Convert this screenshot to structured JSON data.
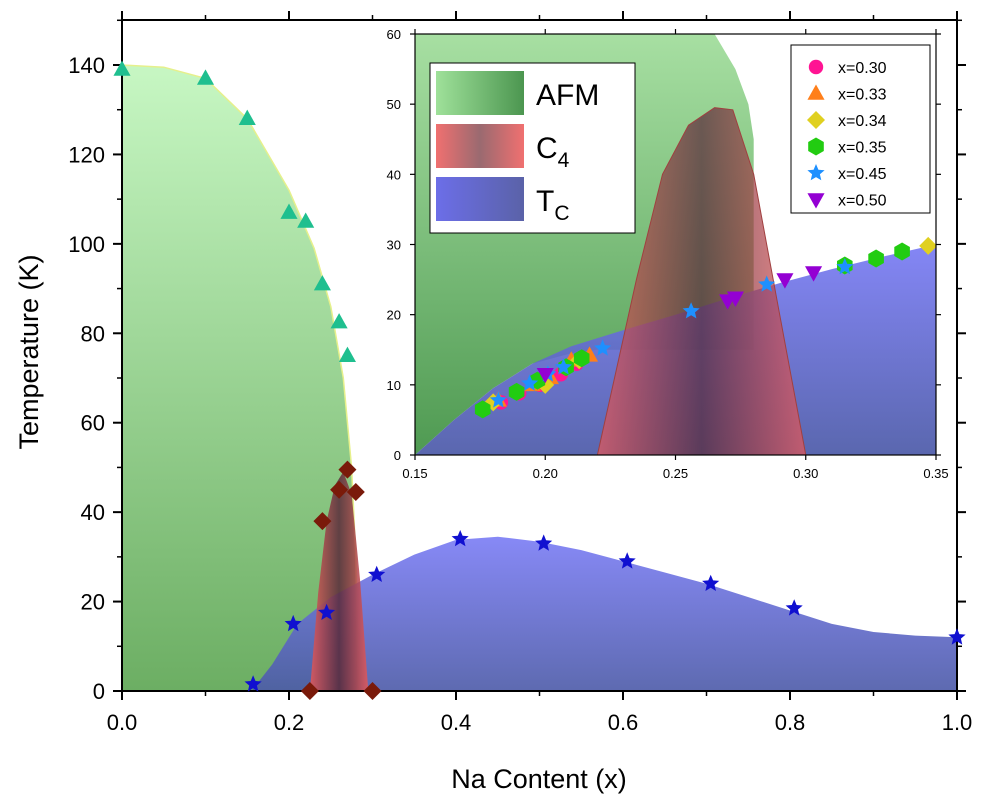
{
  "colors": {
    "afm": "#8fdc8f",
    "c4": "#d93a3a",
    "tc": "#5b5fe0",
    "triangle_marker": "#1fbf8f",
    "diamond_marker": "#7a1a0a",
    "star_marker": "#1010d0"
  },
  "chart_data": [
    {
      "type": "scatter",
      "ylabel": "Temperature (K)",
      "xlabel": "Na Content (x)",
      "xlim": [
        0,
        1
      ],
      "ylim": [
        0,
        150
      ],
      "x_ticks": [
        "0.0",
        "0.2",
        "0.4",
        "0.6",
        "0.8",
        "1.0"
      ],
      "y_ticks": [
        "0",
        "20",
        "40",
        "60",
        "80",
        "100",
        "120",
        "140"
      ],
      "regions": {
        "afm_boundary": [
          [
            0,
            140
          ],
          [
            0.05,
            139.5
          ],
          [
            0.1,
            137
          ],
          [
            0.15,
            128
          ],
          [
            0.2,
            112
          ],
          [
            0.23,
            99
          ],
          [
            0.25,
            86
          ],
          [
            0.265,
            70
          ],
          [
            0.275,
            50
          ],
          [
            0.28,
            30
          ],
          [
            0.283,
            0
          ]
        ],
        "c4_dome": [
          [
            0.225,
            0
          ],
          [
            0.235,
            22
          ],
          [
            0.245,
            38
          ],
          [
            0.255,
            46
          ],
          [
            0.265,
            49
          ],
          [
            0.275,
            44
          ],
          [
            0.285,
            25
          ],
          [
            0.295,
            0
          ]
        ],
        "tc_dome": [
          [
            0.155,
            0
          ],
          [
            0.18,
            6
          ],
          [
            0.21,
            15
          ],
          [
            0.25,
            21
          ],
          [
            0.3,
            26
          ],
          [
            0.35,
            30.5
          ],
          [
            0.4,
            33.8
          ],
          [
            0.45,
            34.5
          ],
          [
            0.5,
            33.4
          ],
          [
            0.55,
            31.5
          ],
          [
            0.6,
            29
          ],
          [
            0.65,
            26.5
          ],
          [
            0.7,
            24
          ],
          [
            0.75,
            21
          ],
          [
            0.8,
            18
          ],
          [
            0.85,
            15
          ],
          [
            0.9,
            13.2
          ],
          [
            0.95,
            12.4
          ],
          [
            1.0,
            12
          ]
        ]
      },
      "series": [
        {
          "marker": "triangle",
          "points": [
            [
              0,
              139
            ],
            [
              0.1,
              137
            ],
            [
              0.15,
              128
            ],
            [
              0.2,
              107
            ],
            [
              0.22,
              105
            ],
            [
              0.24,
              91
            ],
            [
              0.26,
              82.5
            ],
            [
              0.27,
              75
            ]
          ]
        },
        {
          "marker": "diamond",
          "points": [
            [
              0.225,
              0
            ],
            [
              0.24,
              38
            ],
            [
              0.26,
              45
            ],
            [
              0.27,
              49.5
            ],
            [
              0.28,
              44.5
            ],
            [
              0.3,
              0
            ]
          ]
        },
        {
          "marker": "star",
          "points": [
            [
              0.157,
              1.5
            ],
            [
              0.205,
              15
            ],
            [
              0.245,
              17.5
            ],
            [
              0.305,
              26
            ],
            [
              0.405,
              34
            ],
            [
              0.505,
              33
            ],
            [
              0.605,
              29
            ],
            [
              0.705,
              24
            ],
            [
              0.805,
              18.5
            ],
            [
              1.0,
              12
            ]
          ]
        }
      ],
      "legend": {
        "placement": "top-left of inset",
        "entries": [
          {
            "label": "AFM"
          },
          {
            "label": "C",
            "sub": "4"
          },
          {
            "label": "T",
            "sub": "C"
          }
        ]
      }
    },
    {
      "type": "scatter",
      "xlim": [
        0.15,
        0.35
      ],
      "ylim": [
        0,
        60
      ],
      "x_ticks": [
        "0.15",
        "0.20",
        "0.25",
        "0.30",
        "0.35"
      ],
      "y_ticks": [
        "0",
        "10",
        "20",
        "30",
        "40",
        "50",
        "60"
      ],
      "regions": {
        "afm_boundary": [
          [
            0.15,
            0
          ],
          [
            0.165,
            5
          ],
          [
            0.18,
            9.5
          ],
          [
            0.195,
            13
          ],
          [
            0.21,
            14.5
          ],
          [
            0.22,
            15
          ]
        ],
        "afm_edge": [
          [
            0.265,
            60
          ],
          [
            0.273,
            55
          ],
          [
            0.278,
            50
          ],
          [
            0.28,
            45
          ]
        ],
        "c4_dome": [
          [
            0.22,
            0
          ],
          [
            0.235,
            25
          ],
          [
            0.245,
            40
          ],
          [
            0.255,
            47
          ],
          [
            0.265,
            49.5
          ],
          [
            0.272,
            49.2
          ],
          [
            0.28,
            40
          ],
          [
            0.29,
            20
          ],
          [
            0.3,
            0
          ]
        ],
        "tc_curve": [
          [
            0.15,
            0
          ],
          [
            0.165,
            5
          ],
          [
            0.18,
            9.5
          ],
          [
            0.195,
            13
          ],
          [
            0.21,
            15.5
          ],
          [
            0.23,
            17.8
          ],
          [
            0.25,
            20
          ],
          [
            0.27,
            22.3
          ],
          [
            0.29,
            24.5
          ],
          [
            0.31,
            26.5
          ],
          [
            0.33,
            28.3
          ],
          [
            0.35,
            30
          ]
        ]
      },
      "series": [
        {
          "name": "x=0.30",
          "marker": "circle",
          "color": "#ff1493",
          "points": [
            [
              0.183,
              7.5
            ],
            [
              0.19,
              8.8
            ],
            [
              0.198,
              10
            ],
            [
              0.206,
              11.5
            ],
            [
              0.212,
              13
            ]
          ]
        },
        {
          "name": "x=0.33",
          "marker": "triangle",
          "color": "#ff7f1a",
          "points": [
            [
              0.182,
              7.8
            ],
            [
              0.195,
              10
            ],
            [
              0.202,
              11
            ],
            [
              0.21,
              13.5
            ],
            [
              0.217,
              14.2
            ]
          ]
        },
        {
          "name": "x=0.34",
          "marker": "diamond",
          "color": "#e0d020",
          "points": [
            [
              0.18,
              7.5
            ],
            [
              0.2,
              10
            ],
            [
              0.213,
              13.5
            ],
            [
              0.347,
              29.8
            ]
          ]
        },
        {
          "name": "x=0.35",
          "marker": "hexagon",
          "color": "#22cc11",
          "points": [
            [
              0.176,
              6.5
            ],
            [
              0.189,
              9
            ],
            [
              0.197,
              10.6
            ],
            [
              0.208,
              12.5
            ],
            [
              0.214,
              13.8
            ],
            [
              0.315,
              27
            ],
            [
              0.327,
              28
            ],
            [
              0.337,
              29
            ]
          ]
        },
        {
          "name": "x=0.45",
          "marker": "star",
          "color": "#1e90ff",
          "points": [
            [
              0.182,
              7.8
            ],
            [
              0.194,
              10.2
            ],
            [
              0.201,
              11.5
            ],
            [
              0.207,
              12.5
            ],
            [
              0.222,
              15.2
            ],
            [
              0.256,
              20.5
            ],
            [
              0.285,
              24.3
            ],
            [
              0.315,
              26.8
            ]
          ]
        },
        {
          "name": "x=0.50",
          "marker": "triangle-down",
          "color": "#9400d3",
          "points": [
            [
              0.2,
              11.5
            ],
            [
              0.27,
              22
            ],
            [
              0.273,
              22.4
            ],
            [
              0.292,
              25
            ],
            [
              0.303,
              26
            ]
          ]
        }
      ]
    }
  ]
}
